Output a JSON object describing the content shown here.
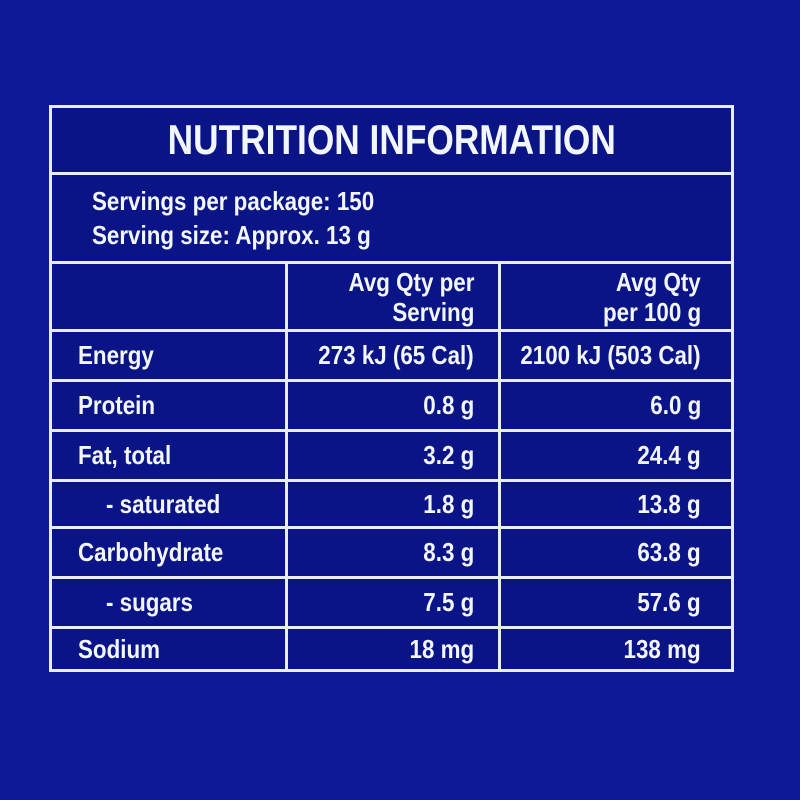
{
  "colors": {
    "page_background": "#0c1a96",
    "cell_background": "#0a1487",
    "line": "#e8eef8",
    "text": "#f2f6fd"
  },
  "table": {
    "title": "NUTRITION INFORMATION",
    "servings_line1": "Servings per package: 150",
    "servings_line2": "Serving size: Approx. 13 g",
    "header": {
      "col2": [
        "Avg Qty per",
        "Serving"
      ],
      "col3": [
        "Avg Qty",
        "per 100 g"
      ]
    },
    "rows": [
      {
        "label": "Energy",
        "per_serving": "273 kJ (65 Cal)",
        "per_100g": "2100 kJ (503 Cal)"
      },
      {
        "label": "Protein",
        "per_serving": "0.8 g",
        "per_100g": "6.0 g"
      },
      {
        "label": "Fat, total",
        "per_serving": "3.2 g",
        "per_100g": "24.4 g"
      },
      {
        "label": "- saturated",
        "per_serving": "1.8 g",
        "per_100g": "13.8 g"
      },
      {
        "label": "Carbohydrate",
        "per_serving": "8.3 g",
        "per_100g": "63.8 g"
      },
      {
        "label": "- sugars",
        "per_serving": "7.5 g",
        "per_100g": "57.6 g"
      },
      {
        "label": "Sodium",
        "per_serving": "18 mg",
        "per_100g": "138 mg"
      }
    ]
  }
}
